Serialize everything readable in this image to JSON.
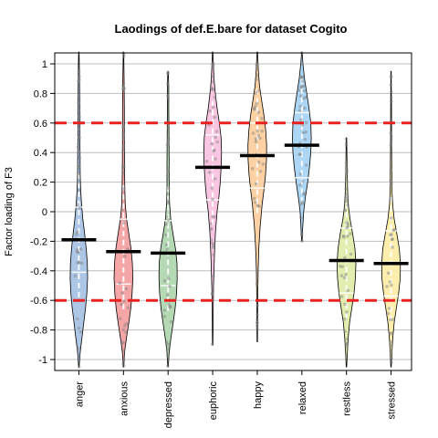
{
  "chart_data": {
    "type": "violin",
    "title": "Laodings of def.E.bare for dataset Cogito",
    "xlabel": "",
    "ylabel": "Factor loading of F3",
    "ylim": [
      -1.08,
      1.08
    ],
    "yticks": [
      "1",
      "0.8",
      "0.6",
      "0.4",
      "0.2",
      "0",
      "-0.2",
      "-0.4",
      "-0.6",
      "-0.8",
      "-1"
    ],
    "ytick_values": [
      1,
      0.8,
      0.6,
      0.4,
      0.2,
      0,
      -0.2,
      -0.4,
      -0.6,
      -0.8,
      -1
    ],
    "grid": true,
    "reference_lines": [
      0.6,
      -0.6
    ],
    "reference_line_color": "#e8201e",
    "categories": [
      "anger",
      "anxious",
      "depressed",
      "euphoric",
      "happy",
      "relaxed",
      "restless",
      "stressed"
    ],
    "colors": [
      "#adc6e6",
      "#f4a5a6",
      "#b4d9b4",
      "#f9c6e2",
      "#fdd1a3",
      "#acd6f4",
      "#e2eeb0",
      "#fdeeae"
    ],
    "means": [
      -0.19,
      -0.27,
      -0.28,
      0.3,
      0.38,
      0.45,
      -0.33,
      -0.35
    ],
    "ranges": [
      [
        -1.05,
        1.08
      ],
      [
        -1.05,
        1.08
      ],
      [
        -1.05,
        0.95
      ],
      [
        -0.9,
        1.08
      ],
      [
        -0.88,
        1.08
      ],
      [
        -0.2,
        1.08
      ],
      [
        -1.05,
        0.5
      ],
      [
        -1.05,
        0.95
      ]
    ],
    "violins": [
      {
        "name": "anger",
        "profile": [
          [
            -1.05,
            0.01
          ],
          [
            -0.95,
            0.06
          ],
          [
            -0.85,
            0.14
          ],
          [
            -0.75,
            0.22
          ],
          [
            -0.65,
            0.3
          ],
          [
            -0.55,
            0.36
          ],
          [
            -0.45,
            0.39
          ],
          [
            -0.35,
            0.38
          ],
          [
            -0.25,
            0.33
          ],
          [
            -0.15,
            0.26
          ],
          [
            -0.05,
            0.18
          ],
          [
            0.05,
            0.12
          ],
          [
            0.15,
            0.08
          ],
          [
            0.25,
            0.06
          ],
          [
            0.4,
            0.05
          ],
          [
            0.55,
            0.04
          ],
          [
            0.7,
            0.04
          ],
          [
            0.85,
            0.03
          ],
          [
            1.0,
            0.02
          ],
          [
            1.08,
            0.01
          ]
        ]
      },
      {
        "name": "anxious",
        "profile": [
          [
            -1.05,
            0.01
          ],
          [
            -0.95,
            0.05
          ],
          [
            -0.85,
            0.14
          ],
          [
            -0.75,
            0.24
          ],
          [
            -0.65,
            0.33
          ],
          [
            -0.55,
            0.39
          ],
          [
            -0.45,
            0.42
          ],
          [
            -0.35,
            0.4
          ],
          [
            -0.25,
            0.34
          ],
          [
            -0.15,
            0.24
          ],
          [
            -0.05,
            0.14
          ],
          [
            0.05,
            0.08
          ],
          [
            0.15,
            0.06
          ],
          [
            0.3,
            0.05
          ],
          [
            0.5,
            0.04
          ],
          [
            0.7,
            0.04
          ],
          [
            0.9,
            0.03
          ],
          [
            1.08,
            0.01
          ]
        ]
      },
      {
        "name": "depressed",
        "profile": [
          [
            -1.05,
            0.01
          ],
          [
            -0.95,
            0.05
          ],
          [
            -0.85,
            0.13
          ],
          [
            -0.75,
            0.23
          ],
          [
            -0.65,
            0.32
          ],
          [
            -0.55,
            0.38
          ],
          [
            -0.45,
            0.41
          ],
          [
            -0.35,
            0.4
          ],
          [
            -0.25,
            0.33
          ],
          [
            -0.15,
            0.22
          ],
          [
            -0.05,
            0.12
          ],
          [
            0.05,
            0.07
          ],
          [
            0.15,
            0.05
          ],
          [
            0.3,
            0.05
          ],
          [
            0.5,
            0.04
          ],
          [
            0.7,
            0.03
          ],
          [
            0.85,
            0.03
          ],
          [
            0.95,
            0.01
          ]
        ]
      },
      {
        "name": "euphoric",
        "profile": [
          [
            -0.9,
            0.01
          ],
          [
            -0.7,
            0.02
          ],
          [
            -0.5,
            0.04
          ],
          [
            -0.3,
            0.08
          ],
          [
            -0.15,
            0.12
          ],
          [
            0.0,
            0.2
          ],
          [
            0.1,
            0.28
          ],
          [
            0.2,
            0.34
          ],
          [
            0.3,
            0.38
          ],
          [
            0.4,
            0.4
          ],
          [
            0.5,
            0.38
          ],
          [
            0.6,
            0.3
          ],
          [
            0.7,
            0.2
          ],
          [
            0.8,
            0.12
          ],
          [
            0.9,
            0.06
          ],
          [
            1.0,
            0.03
          ],
          [
            1.08,
            0.01
          ]
        ]
      },
      {
        "name": "happy",
        "profile": [
          [
            -0.88,
            0.01
          ],
          [
            -0.6,
            0.02
          ],
          [
            -0.4,
            0.04
          ],
          [
            -0.25,
            0.07
          ],
          [
            -0.1,
            0.13
          ],
          [
            0.05,
            0.22
          ],
          [
            0.15,
            0.3
          ],
          [
            0.25,
            0.37
          ],
          [
            0.35,
            0.41
          ],
          [
            0.45,
            0.42
          ],
          [
            0.55,
            0.38
          ],
          [
            0.65,
            0.3
          ],
          [
            0.75,
            0.2
          ],
          [
            0.85,
            0.1
          ],
          [
            0.95,
            0.05
          ],
          [
            1.08,
            0.01
          ]
        ]
      },
      {
        "name": "relaxed",
        "profile": [
          [
            -0.2,
            0.01
          ],
          [
            -0.1,
            0.04
          ],
          [
            0.0,
            0.08
          ],
          [
            0.1,
            0.16
          ],
          [
            0.2,
            0.26
          ],
          [
            0.3,
            0.34
          ],
          [
            0.4,
            0.4
          ],
          [
            0.5,
            0.42
          ],
          [
            0.6,
            0.4
          ],
          [
            0.7,
            0.32
          ],
          [
            0.8,
            0.22
          ],
          [
            0.9,
            0.12
          ],
          [
            1.0,
            0.05
          ],
          [
            1.08,
            0.01
          ]
        ]
      },
      {
        "name": "restless",
        "profile": [
          [
            -1.05,
            0.01
          ],
          [
            -0.95,
            0.04
          ],
          [
            -0.85,
            0.08
          ],
          [
            -0.75,
            0.14
          ],
          [
            -0.65,
            0.24
          ],
          [
            -0.55,
            0.34
          ],
          [
            -0.45,
            0.4
          ],
          [
            -0.35,
            0.42
          ],
          [
            -0.25,
            0.38
          ],
          [
            -0.15,
            0.28
          ],
          [
            -0.05,
            0.16
          ],
          [
            0.05,
            0.08
          ],
          [
            0.15,
            0.05
          ],
          [
            0.3,
            0.03
          ],
          [
            0.5,
            0.01
          ]
        ]
      },
      {
        "name": "stressed",
        "profile": [
          [
            -1.05,
            0.01
          ],
          [
            -0.95,
            0.04
          ],
          [
            -0.85,
            0.08
          ],
          [
            -0.75,
            0.14
          ],
          [
            -0.65,
            0.24
          ],
          [
            -0.55,
            0.34
          ],
          [
            -0.45,
            0.41
          ],
          [
            -0.35,
            0.42
          ],
          [
            -0.25,
            0.37
          ],
          [
            -0.15,
            0.26
          ],
          [
            -0.05,
            0.14
          ],
          [
            0.05,
            0.07
          ],
          [
            0.15,
            0.04
          ],
          [
            0.3,
            0.03
          ],
          [
            0.5,
            0.02
          ],
          [
            0.7,
            0.02
          ],
          [
            0.85,
            0.01
          ],
          [
            0.95,
            0.01
          ]
        ]
      }
    ]
  }
}
